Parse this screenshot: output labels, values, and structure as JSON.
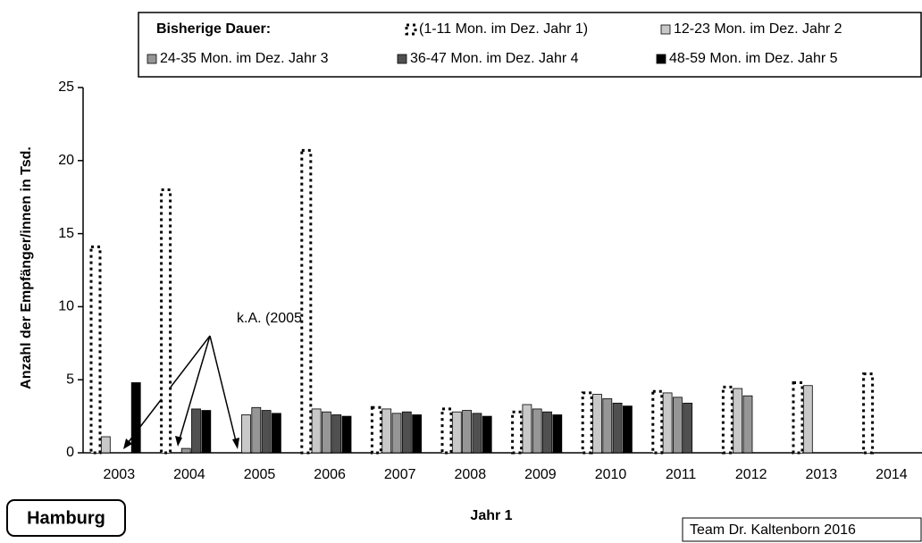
{
  "chart_data": {
    "type": "bar",
    "legend_title": "Bisherige Dauer:",
    "y_label": "Anzahl der Empfänger/innen in Tsd.",
    "x_label": "Jahr 1",
    "annotation": "k.A. (2005)",
    "region": "Hamburg",
    "source": "Team Dr. Kaltenborn 2016",
    "categories": [
      "2003",
      "2004",
      "2005",
      "2006",
      "2007",
      "2008",
      "2009",
      "2010",
      "2011",
      "2012",
      "2013",
      "2014"
    ],
    "series": [
      {
        "name": "(1-11 Mon. im Dez. Jahr 1)",
        "color": "#ffffff",
        "values": [
          14.1,
          18.0,
          null,
          20.7,
          3.1,
          3.0,
          2.8,
          4.1,
          4.2,
          4.5,
          4.8,
          5.4
        ]
      },
      {
        "name": "12-23 Mon. im Dez. Jahr 2",
        "color": "#c8c8c8",
        "values": [
          1.1,
          null,
          2.6,
          3.0,
          3.0,
          2.8,
          3.3,
          4.0,
          4.1,
          4.4,
          4.6,
          null
        ]
      },
      {
        "name": "24-35 Mon. im Dez. Jahr 3",
        "color": "#969696",
        "values": [
          null,
          0.3,
          3.1,
          2.8,
          2.7,
          2.9,
          3.0,
          3.7,
          3.8,
          3.9,
          null,
          null
        ]
      },
      {
        "name": "36-47 Mon. im Dez. Jahr 4",
        "color": "#505050",
        "values": [
          null,
          3.0,
          2.9,
          2.6,
          2.8,
          2.7,
          2.8,
          3.4,
          3.4,
          null,
          null,
          null
        ]
      },
      {
        "name": "48-59 Mon. im Dez. Jahr 5",
        "color": "#000000",
        "values": [
          4.8,
          2.9,
          2.7,
          2.5,
          2.6,
          2.5,
          2.6,
          3.2,
          null,
          null,
          null,
          null
        ]
      }
    ],
    "ylim": [
      0,
      25
    ],
    "yticks": [
      0,
      5,
      10,
      15,
      20,
      25
    ]
  }
}
